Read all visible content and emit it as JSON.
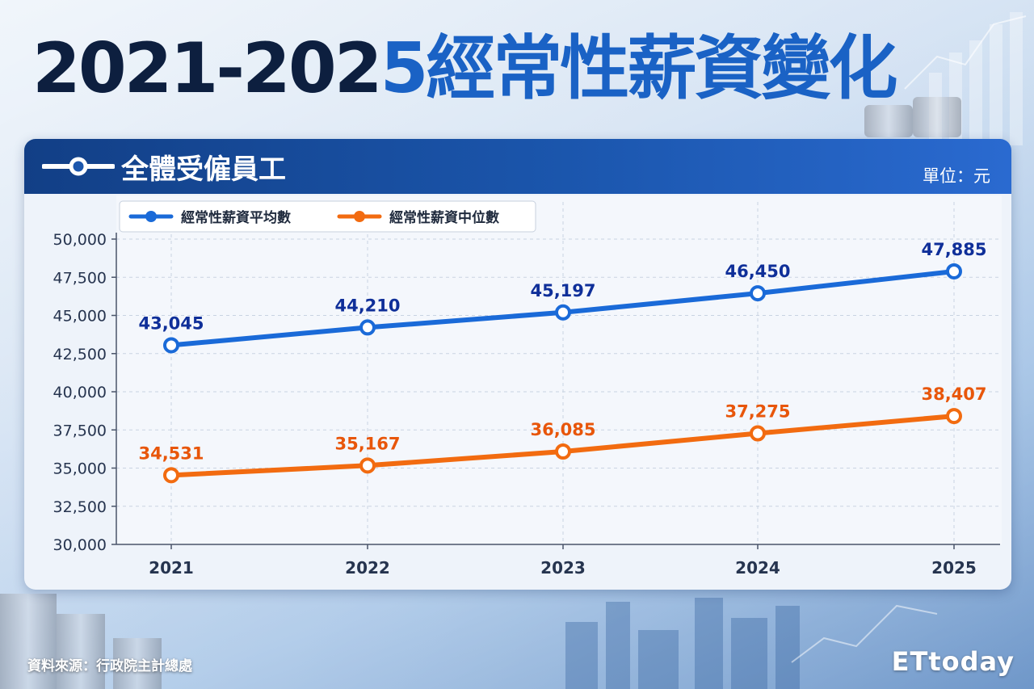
{
  "title": {
    "prefix": "2021-202",
    "accent": "5經常性薪資變化"
  },
  "panel": {
    "title": "全體受僱員工",
    "unit": "單位：元"
  },
  "source": "資料來源：行政院主計總處",
  "logo": "ETtoday",
  "colors": {
    "series1": "#1a6ad8",
    "series2": "#f26b10",
    "label1": "#0f2f99",
    "label2": "#e8560a",
    "header": "#1b56ad"
  },
  "chart_data": {
    "type": "line",
    "categories": [
      "2021",
      "2022",
      "2023",
      "2024",
      "2025"
    ],
    "ylim": [
      30000,
      50000
    ],
    "yticks": [
      30000,
      32500,
      35000,
      37500,
      40000,
      42500,
      45000,
      47500,
      50000
    ],
    "ytick_labels": [
      "30,000",
      "32,500",
      "35,000",
      "37,500",
      "40,000",
      "42,500",
      "45,000",
      "47,500",
      "50,000"
    ],
    "grid": true,
    "legend_position": "top-left",
    "series": [
      {
        "name": "經常性薪資平均數",
        "values": [
          43045,
          44210,
          45197,
          46450,
          47885
        ],
        "labels": [
          "43,045",
          "44,210",
          "45,197",
          "46,450",
          "47,885"
        ]
      },
      {
        "name": "經常性薪資中位數",
        "values": [
          34531,
          35167,
          36085,
          37275,
          38407
        ],
        "labels": [
          "34,531",
          "35,167",
          "36,085",
          "37,275",
          "38,407"
        ]
      }
    ]
  }
}
